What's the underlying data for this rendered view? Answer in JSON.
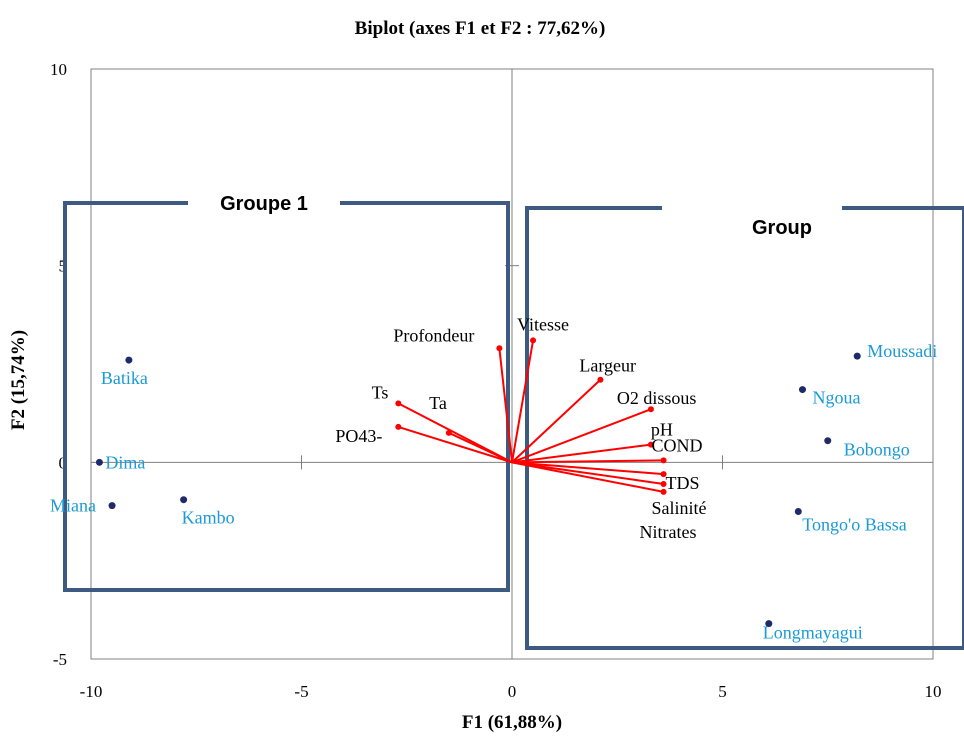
{
  "chart_data": {
    "type": "scatter",
    "title": "Biplot (axes F1 et F2 : 77,62%)",
    "xlabel": "F1 (61,88%)",
    "ylabel": "F2 (15,74%)",
    "xlim": [
      -10,
      10
    ],
    "ylim": [
      -5,
      10
    ],
    "x_ticks": [
      "-10",
      "-5",
      "0",
      "5",
      "10"
    ],
    "y_ticks": [
      "10",
      "5",
      "0",
      "-5"
    ],
    "grid": false,
    "colors": {
      "observations": "#1a9ad6",
      "observation_marker": "#1f2a6b",
      "variables": "#ff0000",
      "group_box": "#3d5a80",
      "axes": "#808080"
    },
    "observations": [
      {
        "name": "Batika",
        "x": -9.1,
        "y": 2.6
      },
      {
        "name": "Dima",
        "x": -9.8,
        "y": 0.0
      },
      {
        "name": "Miana",
        "x": -9.5,
        "y": -1.1
      },
      {
        "name": "Kambo",
        "x": -7.8,
        "y": -0.95
      },
      {
        "name": "Moussadi",
        "x": 8.2,
        "y": 2.7
      },
      {
        "name": "Ngoua",
        "x": 6.9,
        "y": 1.85
      },
      {
        "name": "Bobongo",
        "x": 7.5,
        "y": 0.55
      },
      {
        "name": "Tongo'o Bassa",
        "x": 6.8,
        "y": -1.25
      },
      {
        "name": "Longmayagui",
        "x": 6.1,
        "y": -4.1
      }
    ],
    "variables": [
      {
        "name": "Profondeur",
        "x": -0.3,
        "y": 2.9
      },
      {
        "name": "Vitesse",
        "x": 0.5,
        "y": 3.1
      },
      {
        "name": "Largeur",
        "x": 2.1,
        "y": 2.1
      },
      {
        "name": "O2 dissous",
        "x": 3.3,
        "y": 1.35
      },
      {
        "name": "pH",
        "x": 3.3,
        "y": 0.45
      },
      {
        "name": "COND",
        "x": 3.6,
        "y": 0.05
      },
      {
        "name": "TDS",
        "x": 3.6,
        "y": -0.3
      },
      {
        "name": "Salinité",
        "x": 3.6,
        "y": -0.55
      },
      {
        "name": "Nitrates",
        "x": 3.6,
        "y": -0.75
      },
      {
        "name": "Ts",
        "x": -2.7,
        "y": 1.5
      },
      {
        "name": "PO43-",
        "x": -2.7,
        "y": 0.9
      },
      {
        "name": "Ta",
        "x": -1.5,
        "y": 0.75
      }
    ],
    "groups": [
      {
        "label": "Groupe 1"
      },
      {
        "label": "Group"
      }
    ]
  }
}
